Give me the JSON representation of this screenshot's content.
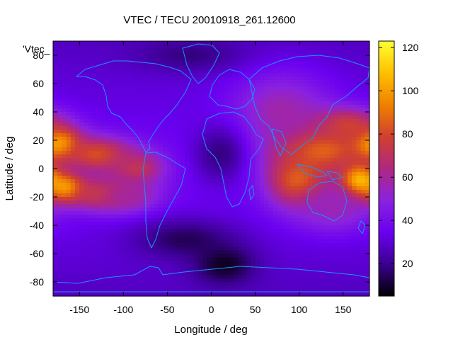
{
  "chart_data": {
    "type": "heatmap",
    "title": "VTEC / TECU 20010918_261.12600",
    "xlabel": "Longitude / deg",
    "ylabel": "Latitude / deg",
    "legend_label": "'Vtec_",
    "xlim": [
      -180,
      180
    ],
    "ylim": [
      -90,
      90
    ],
    "x_ticks": [
      -150,
      -100,
      -50,
      0,
      50,
      100,
      150
    ],
    "y_ticks": [
      -80,
      -60,
      -40,
      -20,
      0,
      20,
      40,
      60,
      80
    ],
    "colorbar_range": [
      5,
      123
    ],
    "colorbar_ticks": [
      20,
      40,
      60,
      80,
      100,
      120
    ],
    "colormap": [
      "#000000",
      "#3b0090",
      "#6a00f0",
      "#8a22e0",
      "#b02880",
      "#d04030",
      "#f08000",
      "#ffc000",
      "#ffff30"
    ],
    "continent_color": "#1e90ff",
    "grid": false,
    "features": [
      {
        "lon": -175,
        "lat": 18,
        "value": 112,
        "slon": 18,
        "slat": 8
      },
      {
        "lon": -165,
        "lat": -14,
        "value": 108,
        "slon": 16,
        "slat": 7
      },
      {
        "lon": -130,
        "lat": 10,
        "value": 82,
        "slon": 28,
        "slat": 9
      },
      {
        "lon": -125,
        "lat": -18,
        "value": 80,
        "slon": 28,
        "slat": 8
      },
      {
        "lon": -85,
        "lat": 0,
        "value": 72,
        "slon": 22,
        "slat": 9
      },
      {
        "lon": -95,
        "lat": -20,
        "value": 60,
        "slon": 25,
        "slat": 8
      },
      {
        "lon": 120,
        "lat": 15,
        "value": 98,
        "slon": 35,
        "slat": 12
      },
      {
        "lon": 168,
        "lat": -10,
        "value": 118,
        "slon": 16,
        "slat": 9
      },
      {
        "lon": 100,
        "lat": -8,
        "value": 90,
        "slon": 25,
        "slat": 14
      },
      {
        "lon": 150,
        "lat": 30,
        "value": 82,
        "slon": 30,
        "slat": 9
      },
      {
        "lon": 140,
        "lat": -28,
        "value": 56,
        "slon": 30,
        "slat": 12
      },
      {
        "lon": 80,
        "lat": 40,
        "value": 58,
        "slon": 40,
        "slat": 20
      },
      {
        "lon": 10,
        "lat": 10,
        "value": 18,
        "slon": 22,
        "slat": 15
      },
      {
        "lon": -30,
        "lat": -50,
        "value": 14,
        "slon": 40,
        "slat": 10
      },
      {
        "lon": 15,
        "lat": -68,
        "value": 8,
        "slon": 25,
        "slat": 10
      },
      {
        "lon": -25,
        "lat": 80,
        "value": 18,
        "slon": 40,
        "slat": 8
      }
    ]
  }
}
